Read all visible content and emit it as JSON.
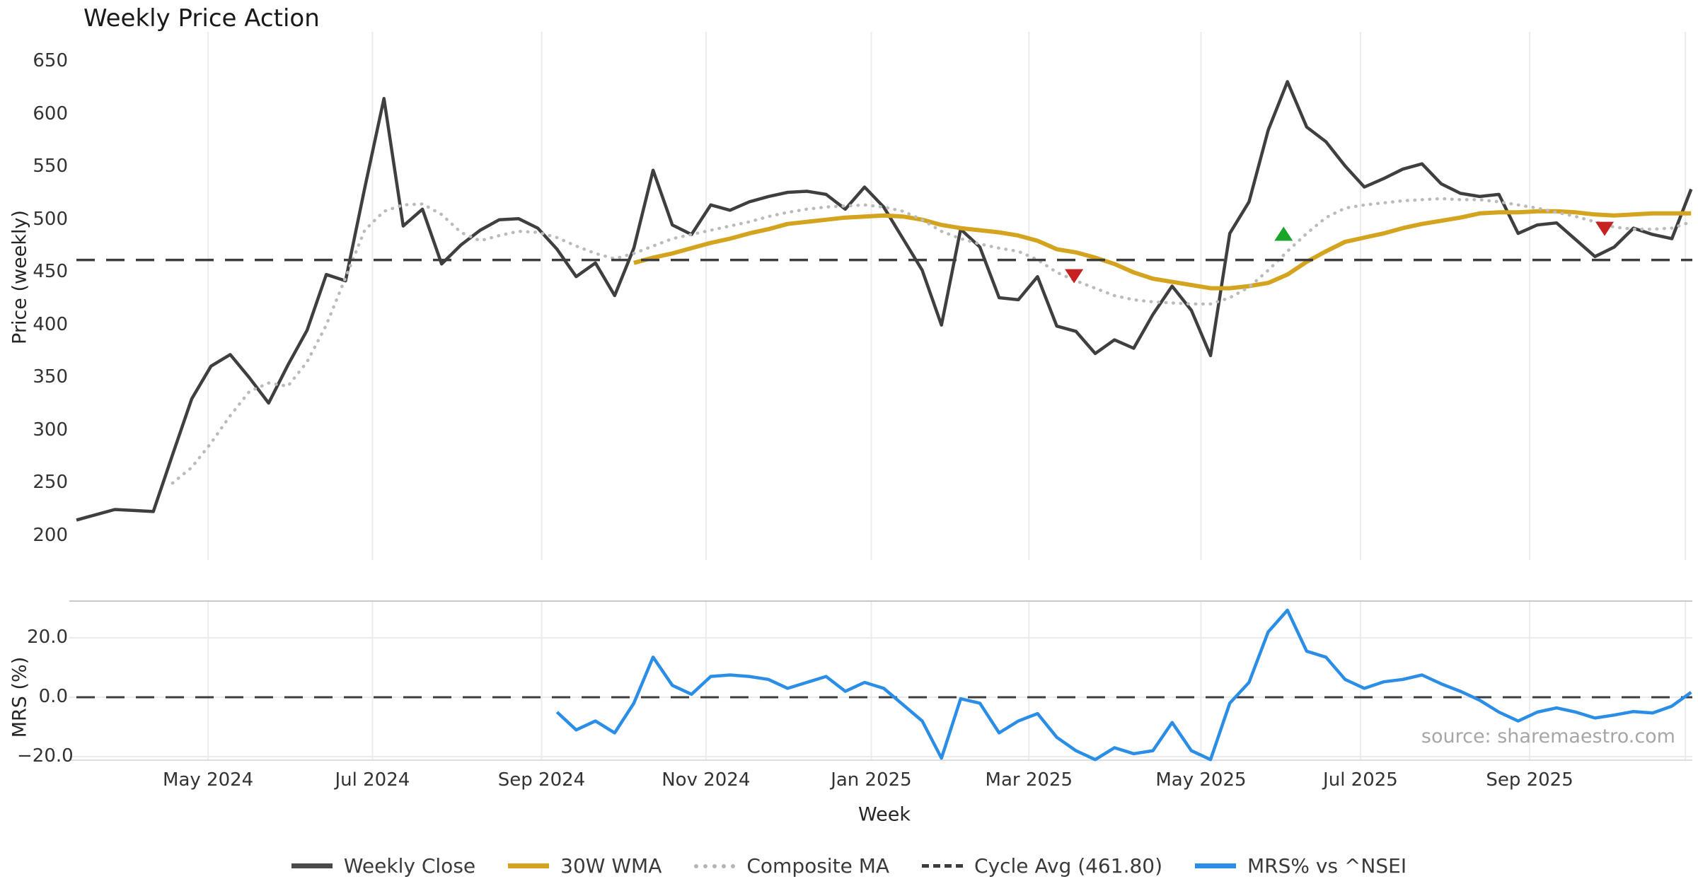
{
  "title": "Weekly Price Action",
  "source_note": "source: sharemaestro.com",
  "axes": {
    "price_label": "Price (weekly)",
    "price_ticks": [
      650,
      600,
      550,
      500,
      450,
      400,
      350,
      300,
      250,
      200
    ],
    "mrs_label": "MRS (%)",
    "mrs_ticks": [
      {
        "label": "20.0",
        "value": 20
      },
      {
        "label": "0.0",
        "value": 0
      },
      {
        "label": "−20.0",
        "value": -20
      }
    ],
    "x_label": "Week",
    "month_ticks": [
      {
        "label": "May 2024",
        "week": 6.85
      },
      {
        "label": "Jul 2024",
        "week": 15.4
      },
      {
        "label": "Sep 2024",
        "week": 24.2
      },
      {
        "label": "Nov 2024",
        "week": 32.75
      },
      {
        "label": "Jan 2025",
        "week": 41.35
      },
      {
        "label": "Mar 2025",
        "week": 49.55
      },
      {
        "label": "May 2025",
        "week": 58.5
      },
      {
        "label": "Jul 2025",
        "week": 66.8
      },
      {
        "label": "Sep 2025",
        "week": 75.6
      },
      {
        "label": "",
        "week": 83.7
      }
    ]
  },
  "legend": [
    {
      "label": "Weekly Close",
      "color": "#4a4a4a",
      "style": "solid"
    },
    {
      "label": "30W WMA",
      "color": "#d4a41f",
      "style": "solid"
    },
    {
      "label": "Composite MA",
      "color": "#b5b5b5",
      "style": "dotted"
    },
    {
      "label": "Cycle Avg (461.80)",
      "color": "#3c3c3c",
      "style": "dashed"
    },
    {
      "label": "MRS% vs ^NSEI",
      "color": "#2a8de6",
      "style": "solid"
    }
  ],
  "chart_data": {
    "type": "line",
    "title": "Weekly Price Action",
    "x_unit": "week",
    "x_range_note": "weekly data, approx Mar 2024 through Oct 2025, week 0 at left edge",
    "panels": [
      {
        "name": "price",
        "ylabel": "Price (weekly)",
        "ylim": [
          190,
          665
        ],
        "yticks": [
          650,
          600,
          550,
          500,
          450,
          400,
          350,
          300,
          250,
          200
        ]
      },
      {
        "name": "mrs",
        "ylabel": "MRS (%)",
        "ylim": [
          -27,
          33
        ],
        "yticks": [
          20,
          0,
          -20
        ]
      }
    ],
    "cycle_avg": 461.8,
    "series": [
      {
        "name": "Weekly Close",
        "panel": "price",
        "color": "#3f3f3f",
        "style": "solid",
        "start_week": 0,
        "values": [
          215,
          220,
          225,
          224,
          223,
          277,
          330,
          361,
          372,
          350,
          326,
          362,
          395,
          448,
          442,
          530,
          615,
          494,
          510,
          458,
          476,
          490,
          500,
          501,
          492,
          472,
          446,
          459,
          428,
          473,
          547,
          495,
          486,
          514,
          509,
          517,
          522,
          526,
          527,
          524,
          510,
          531,
          512,
          482,
          452,
          400,
          491,
          474,
          426,
          424,
          446,
          399,
          394,
          373,
          386,
          378,
          410,
          437,
          414,
          371,
          487,
          517,
          585,
          631,
          588,
          574,
          551,
          531,
          539,
          548,
          553,
          534,
          525,
          522,
          524,
          487,
          495,
          497,
          481,
          465,
          474,
          492,
          486,
          482,
          529
        ]
      },
      {
        "name": "30W WMA",
        "panel": "price",
        "color": "#d4a41f",
        "style": "solid",
        "start_week": 29,
        "values": [
          459,
          464,
          468,
          473,
          478,
          482,
          487,
          491,
          496,
          498,
          500,
          502,
          503,
          504,
          503,
          500,
          495,
          492,
          490,
          488,
          485,
          480,
          472,
          469,
          464,
          458,
          450,
          444,
          441,
          438,
          435,
          435,
          437,
          440,
          448,
          460,
          470,
          479,
          483,
          487,
          492,
          496,
          499,
          502,
          506,
          507,
          507,
          508,
          508,
          507,
          505,
          504,
          505,
          506,
          506,
          506
        ]
      },
      {
        "name": "Composite MA",
        "panel": "price",
        "color": "#bbbbbb",
        "style": "dotted",
        "start_week": 5,
        "values": [
          250,
          265,
          288,
          314,
          337,
          345,
          342,
          365,
          400,
          445,
          490,
          508,
          514,
          515,
          505,
          488,
          480,
          485,
          489,
          488,
          483,
          475,
          468,
          463,
          468,
          475,
          482,
          486,
          490,
          494,
          498,
          503,
          507,
          510,
          512,
          513,
          514,
          512,
          508,
          500,
          489,
          482,
          477,
          473,
          470,
          462,
          450,
          442,
          435,
          428,
          424,
          422,
          421,
          420,
          420,
          426,
          436,
          452,
          470,
          487,
          502,
          511,
          514,
          516,
          518,
          519,
          520,
          519,
          519,
          517,
          514,
          511,
          507,
          503,
          498,
          493,
          491,
          491,
          492,
          498
        ]
      },
      {
        "name": "Cycle Avg",
        "panel": "price",
        "color": "#3d3d3d",
        "style": "dashed",
        "value": 461.8
      },
      {
        "name": "MRS% vs ^NSEI",
        "panel": "mrs",
        "color": "#2a8de6",
        "style": "solid",
        "start_week": 25,
        "values": [
          -5,
          -11,
          -8,
          -12,
          -2,
          13.5,
          4,
          1,
          7,
          7.5,
          7,
          6,
          3,
          5,
          7,
          2,
          5,
          3,
          -2.5,
          -8,
          -20.5,
          -0.5,
          -2,
          -12,
          -8,
          -5.5,
          -13.5,
          -18,
          -21,
          -17,
          -19,
          -18,
          -8.5,
          -18,
          -21,
          -2,
          5,
          22,
          29.3,
          15.5,
          13.5,
          6,
          3,
          5.2,
          6,
          7.5,
          4.5,
          2,
          -1,
          -5,
          -8,
          -5,
          -3.6,
          -5,
          -7,
          -6,
          -4.8,
          -5.3,
          -3,
          1.7
        ]
      }
    ],
    "markers": [
      {
        "type": "sell",
        "shape": "triangle-down",
        "color": "#c62222",
        "week": 51.9,
        "value": 447
      },
      {
        "type": "buy",
        "shape": "triangle-up",
        "color": "#19a42a",
        "week": 62.8,
        "value": 486
      },
      {
        "type": "sell",
        "shape": "triangle-down",
        "color": "#c62222",
        "week": 79.5,
        "value": 492
      }
    ]
  }
}
